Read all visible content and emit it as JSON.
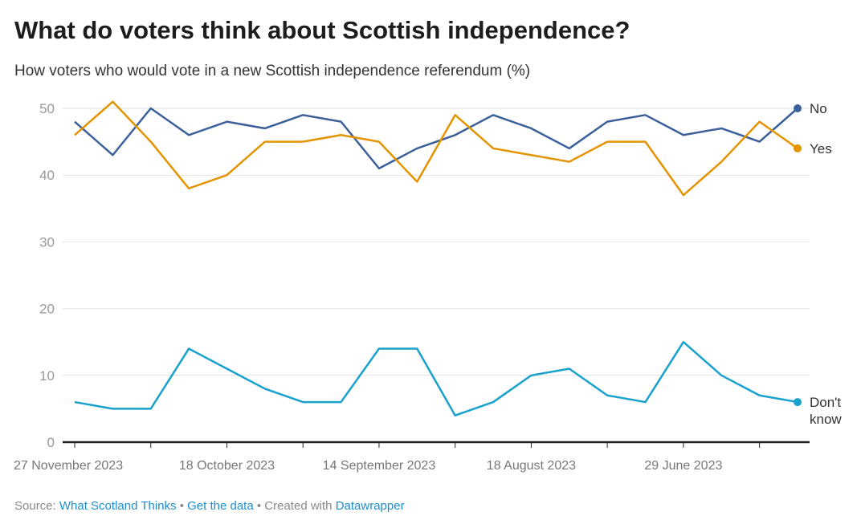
{
  "title": "What do voters think about Scottish independence?",
  "subtitle": "How voters who would vote in a new Scottish independence referendum (%)",
  "footer": {
    "source_label": "Source:",
    "source_link": "What Scotland Thinks",
    "sep": "•",
    "data_link": "Get the data",
    "created": "Created with",
    "tool_link": "Datawrapper"
  },
  "chart_data": {
    "type": "line",
    "x": [
      0,
      1,
      2,
      3,
      4,
      5,
      6,
      7,
      8,
      9,
      10,
      11,
      12,
      13,
      14,
      15,
      16,
      17,
      18,
      19
    ],
    "x_tick_labels": [
      {
        "index": 0,
        "label": "27 November 2023"
      },
      {
        "index": 4,
        "label": "18 October 2023"
      },
      {
        "index": 8,
        "label": "14 September 2023"
      },
      {
        "index": 12,
        "label": "18 August 2023"
      },
      {
        "index": 16,
        "label": "29 June 2023"
      }
    ],
    "ylim": [
      0,
      50
    ],
    "yticks": [
      0,
      10,
      20,
      30,
      40,
      50
    ],
    "grid": true,
    "legend": "direct labels at right",
    "series": [
      {
        "name": "No",
        "color": "#3a5f9a",
        "values": [
          48,
          43,
          50,
          46,
          48,
          47,
          49,
          48,
          41,
          44,
          46,
          49,
          47,
          44,
          48,
          49,
          46,
          47,
          45,
          50
        ]
      },
      {
        "name": "Yes",
        "color": "#e39400",
        "values": [
          46,
          51,
          45,
          38,
          40,
          45,
          45,
          46,
          45,
          39,
          49,
          44,
          43,
          42,
          45,
          45,
          37,
          42,
          48,
          44
        ]
      },
      {
        "name": "Don't know",
        "color": "#18a1cd",
        "values": [
          6,
          5,
          5,
          14,
          11,
          8,
          6,
          6,
          14,
          14,
          4,
          6,
          10,
          11,
          7,
          6,
          15,
          10,
          7,
          6
        ]
      }
    ]
  }
}
